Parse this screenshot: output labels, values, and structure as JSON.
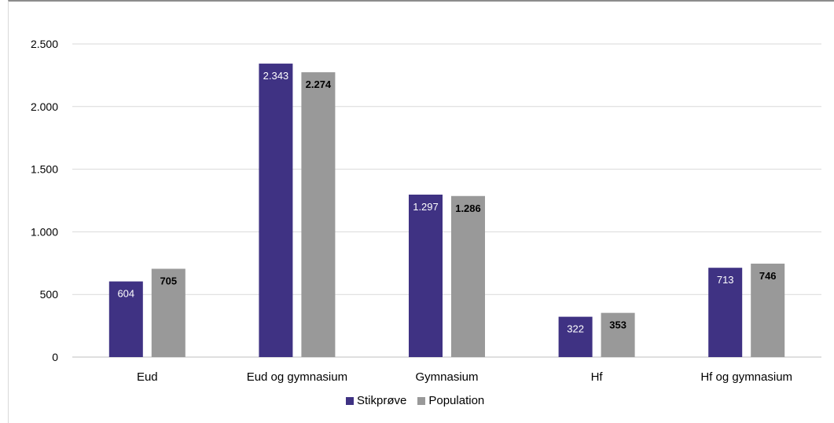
{
  "chart_data": {
    "type": "bar",
    "categories": [
      "Eud",
      "Eud og gymnasium",
      "Gymnasium",
      "Hf",
      "Hf og gymnasium"
    ],
    "series": [
      {
        "name": "Stikprøve",
        "color": "#3f3283",
        "label_color": "#ffffff",
        "label_bold": false,
        "values": [
          604,
          2343,
          1297,
          322,
          713
        ],
        "labels": [
          "604",
          "2.343",
          "1.297",
          "322",
          "713"
        ]
      },
      {
        "name": "Population",
        "color": "#999999",
        "label_color": "#000000",
        "label_bold": true,
        "values": [
          705,
          2274,
          1286,
          353,
          746
        ],
        "labels": [
          "705",
          "2.274",
          "1.286",
          "353",
          "746"
        ]
      }
    ],
    "ylim": [
      0,
      2500
    ],
    "yticks": [
      0,
      500,
      1000,
      1500,
      2000,
      2500
    ],
    "ytick_labels": [
      "0",
      "500",
      "1.000",
      "1.500",
      "2.000",
      "2.500"
    ],
    "grid": true,
    "legend_position": "bottom",
    "title": "",
    "xlabel": "",
    "ylabel": ""
  }
}
